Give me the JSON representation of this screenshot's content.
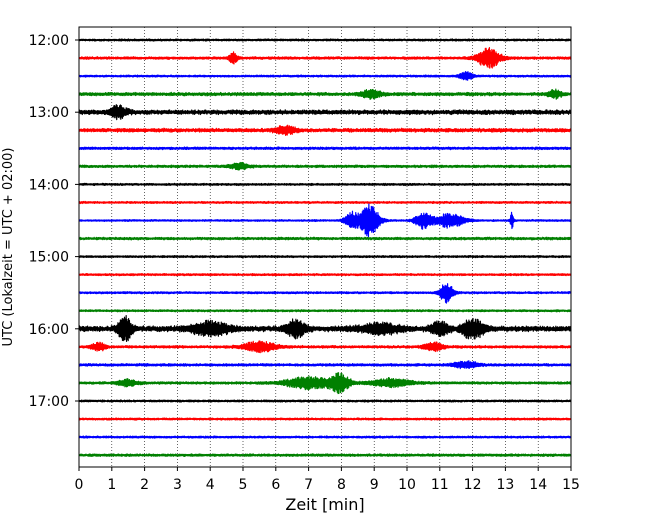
{
  "chart_data": {
    "type": "line",
    "xlabel": "Zeit  [min]",
    "ylabel": "UTC (Lokalzeit = UTC + 02:00)",
    "xlim": [
      0,
      15
    ],
    "x_ticks": [
      0,
      1,
      2,
      3,
      4,
      5,
      6,
      7,
      8,
      9,
      10,
      11,
      12,
      13,
      14,
      15
    ],
    "y_ticks": [
      "12:00",
      "13:00",
      "14:00",
      "15:00",
      "16:00",
      "17:00"
    ],
    "y_tick_every_n_traces": 4,
    "grid": "vertical dotted",
    "trace_start_time": "12:00",
    "trace_interval_min": 15,
    "trace_colors": [
      "#000000",
      "#ff0000",
      "#0000ff",
      "#008000"
    ],
    "traces": [
      {
        "time": "12:00",
        "color": "#000000",
        "base_amp": 0.8,
        "events": []
      },
      {
        "time": "12:15",
        "color": "#ff0000",
        "base_amp": 1.0,
        "events": [
          {
            "t": 4.7,
            "amp": 6,
            "dur": 0.12
          },
          {
            "t": 12.5,
            "amp": 10,
            "dur": 0.35
          }
        ]
      },
      {
        "time": "12:30",
        "color": "#0000ff",
        "base_amp": 0.8,
        "events": [
          {
            "t": 11.8,
            "amp": 4,
            "dur": 0.2
          }
        ]
      },
      {
        "time": "12:45",
        "color": "#008000",
        "base_amp": 1.3,
        "events": [
          {
            "t": 8.9,
            "amp": 4,
            "dur": 0.3
          },
          {
            "t": 14.5,
            "amp": 4,
            "dur": 0.2
          }
        ]
      },
      {
        "time": "13:00",
        "color": "#000000",
        "base_amp": 1.8,
        "events": [
          {
            "t": 1.2,
            "amp": 6,
            "dur": 0.25
          }
        ]
      },
      {
        "time": "13:15",
        "color": "#ff0000",
        "base_amp": 1.5,
        "events": [
          {
            "t": 6.3,
            "amp": 4,
            "dur": 0.3
          }
        ]
      },
      {
        "time": "13:30",
        "color": "#0000ff",
        "base_amp": 1.0,
        "events": []
      },
      {
        "time": "13:45",
        "color": "#008000",
        "base_amp": 1.0,
        "events": [
          {
            "t": 4.9,
            "amp": 3,
            "dur": 0.3
          }
        ]
      },
      {
        "time": "14:00",
        "color": "#000000",
        "base_amp": 0.8,
        "events": []
      },
      {
        "time": "14:15",
        "color": "#ff0000",
        "base_amp": 0.8,
        "events": []
      },
      {
        "time": "14:30",
        "color": "#0000ff",
        "base_amp": 0.7,
        "events": [
          {
            "t": 8.3,
            "amp": 8,
            "dur": 0.2
          },
          {
            "t": 8.85,
            "amp": 16,
            "dur": 0.3
          },
          {
            "t": 10.5,
            "amp": 8,
            "dur": 0.25
          },
          {
            "t": 11.3,
            "amp": 7,
            "dur": 0.45
          },
          {
            "t": 13.2,
            "amp": 8,
            "dur": 0.05
          }
        ]
      },
      {
        "time": "14:45",
        "color": "#008000",
        "base_amp": 1.0,
        "events": []
      },
      {
        "time": "15:00",
        "color": "#000000",
        "base_amp": 0.8,
        "events": []
      },
      {
        "time": "15:15",
        "color": "#ff0000",
        "base_amp": 0.8,
        "events": []
      },
      {
        "time": "15:30",
        "color": "#0000ff",
        "base_amp": 0.8,
        "events": [
          {
            "t": 11.2,
            "amp": 10,
            "dur": 0.2
          }
        ]
      },
      {
        "time": "15:45",
        "color": "#008000",
        "base_amp": 0.8,
        "events": []
      },
      {
        "time": "16:00",
        "color": "#000000",
        "base_amp": 2.2,
        "events": [
          {
            "t": 1.4,
            "amp": 12,
            "dur": 0.2
          },
          {
            "t": 4.0,
            "amp": 6,
            "dur": 0.6
          },
          {
            "t": 6.6,
            "amp": 8,
            "dur": 0.3
          },
          {
            "t": 9.2,
            "amp": 5,
            "dur": 0.6
          },
          {
            "t": 11.0,
            "amp": 7,
            "dur": 0.25
          },
          {
            "t": 12.0,
            "amp": 9,
            "dur": 0.35
          }
        ]
      },
      {
        "time": "16:15",
        "color": "#ff0000",
        "base_amp": 1.0,
        "events": [
          {
            "t": 0.6,
            "amp": 4,
            "dur": 0.2
          },
          {
            "t": 5.5,
            "amp": 5,
            "dur": 0.5
          },
          {
            "t": 10.8,
            "amp": 4,
            "dur": 0.3
          }
        ]
      },
      {
        "time": "16:30",
        "color": "#0000ff",
        "base_amp": 1.0,
        "events": [
          {
            "t": 11.8,
            "amp": 3,
            "dur": 0.4
          }
        ]
      },
      {
        "time": "16:45",
        "color": "#008000",
        "base_amp": 1.0,
        "events": [
          {
            "t": 1.5,
            "amp": 3,
            "dur": 0.3
          },
          {
            "t": 7.0,
            "amp": 6,
            "dur": 0.7
          },
          {
            "t": 7.95,
            "amp": 9,
            "dur": 0.3
          },
          {
            "t": 9.5,
            "amp": 4,
            "dur": 0.6
          }
        ]
      },
      {
        "time": "17:00",
        "color": "#000000",
        "base_amp": 0.8,
        "events": []
      },
      {
        "time": "17:15",
        "color": "#ff0000",
        "base_amp": 0.8,
        "events": []
      },
      {
        "time": "17:30",
        "color": "#0000ff",
        "base_amp": 0.8,
        "events": []
      },
      {
        "time": "17:45",
        "color": "#008000",
        "base_amp": 1.0,
        "events": []
      }
    ]
  }
}
